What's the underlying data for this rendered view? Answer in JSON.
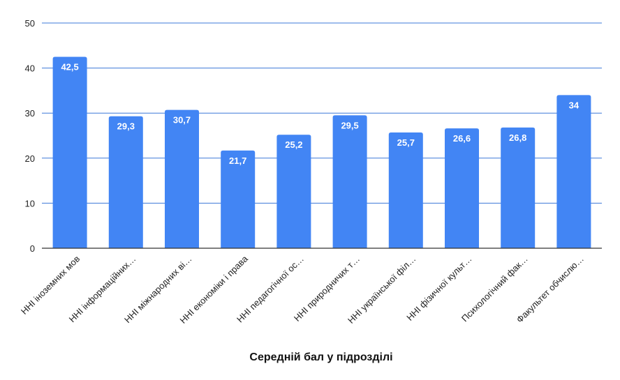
{
  "chart_data": {
    "type": "bar",
    "title": "",
    "xlabel": "Середній бал у підрозділі",
    "ylabel": "",
    "ylim": [
      0,
      50
    ],
    "yticks": [
      0,
      10,
      20,
      30,
      40,
      50
    ],
    "grid": true,
    "legend": "none",
    "categories": [
      "ННІ іноземних мов",
      "ННІ інформаційних…",
      "ННІ міжнародних ві…",
      "ННІ економіки і права",
      "ННІ педагогічної ос…",
      "ННІ природничих т…",
      "ННІ української філ…",
      "ННІ фізичної культ…",
      "Психологічний фак…",
      "Факультет обчислю…"
    ],
    "values": [
      42.5,
      29.3,
      30.7,
      21.7,
      25.2,
      29.5,
      25.7,
      26.6,
      26.8,
      34
    ],
    "data_labels": [
      "42,5",
      "29,3",
      "30,7",
      "21,7",
      "25,2",
      "29,5",
      "25,7",
      "26,6",
      "26,8",
      "34"
    ],
    "colors": {
      "bar": "#4285f4",
      "grid": "#3c78d8",
      "axis": "#333333"
    }
  }
}
